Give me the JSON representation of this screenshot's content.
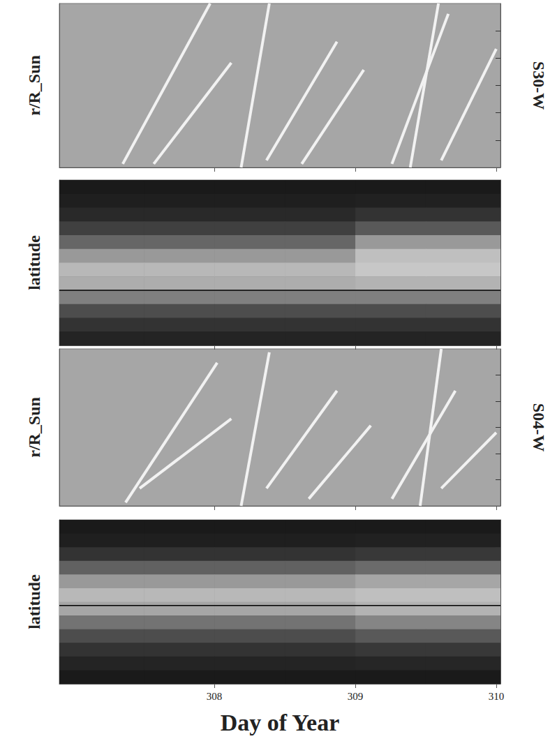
{
  "chart_data": [
    {
      "type": "line",
      "ylabel": "r/R_Sun",
      "annotation": "S30-W",
      "color": "#f2f2f2",
      "xlim": [
        306.9,
        310.03
      ],
      "xticks": [
        308,
        309,
        310
      ],
      "ylim": [
        0,
        6
      ],
      "yticks": [
        1,
        2,
        3,
        4,
        5
      ],
      "tick_labels": false,
      "series": [
        {
          "values": [
            [
              307.35,
              0.13
            ],
            [
              307.97,
              6.0
            ]
          ]
        },
        {
          "values": [
            [
              307.57,
              0.13
            ],
            [
              308.12,
              3.83
            ]
          ]
        },
        {
          "values": [
            [
              308.19,
              0
            ],
            [
              308.39,
              6.0
            ]
          ]
        },
        {
          "values": [
            [
              308.37,
              0.26
            ],
            [
              308.87,
              4.6
            ]
          ]
        },
        {
          "values": [
            [
              308.62,
              0.13
            ],
            [
              309.06,
              3.57
            ]
          ]
        },
        {
          "values": [
            [
              309.26,
              0.13
            ],
            [
              309.66,
              5.62
            ]
          ]
        },
        {
          "values": [
            [
              309.39,
              0
            ],
            [
              309.59,
              6.0
            ]
          ]
        },
        {
          "values": [
            [
              309.61,
              0.26
            ],
            [
              310.0,
              4.34
            ]
          ]
        }
      ]
    },
    {
      "type": "heatmap",
      "ylabel": "latitude",
      "xlim": [
        306.9,
        310.03
      ],
      "xticks": [
        308,
        309,
        310
      ],
      "ylim": [
        -90,
        90
      ],
      "yticks": [
        -60,
        -30,
        0,
        30,
        60
      ],
      "tick_labels": false,
      "hline": -30,
      "x_bins": [
        306.9,
        307.5,
        308,
        308.5,
        309,
        309.5,
        310.03
      ],
      "lat_bins": [
        90,
        75,
        60,
        45,
        30,
        15,
        0,
        -15,
        -30,
        -45,
        -60,
        -75,
        -90
      ],
      "cells": [
        [
          0.1,
          0.1,
          0.1,
          0.1,
          0.1,
          0.1
        ],
        [
          0.12,
          0.12,
          0.12,
          0.12,
          0.13,
          0.13
        ],
        [
          0.16,
          0.16,
          0.16,
          0.16,
          0.2,
          0.2
        ],
        [
          0.25,
          0.25,
          0.25,
          0.25,
          0.35,
          0.35
        ],
        [
          0.4,
          0.4,
          0.4,
          0.4,
          0.6,
          0.6
        ],
        [
          0.6,
          0.6,
          0.6,
          0.6,
          0.75,
          0.75
        ],
        [
          0.72,
          0.72,
          0.72,
          0.72,
          0.78,
          0.78
        ],
        [
          0.68,
          0.68,
          0.68,
          0.68,
          0.7,
          0.7
        ],
        [
          0.5,
          0.5,
          0.5,
          0.5,
          0.5,
          0.5
        ],
        [
          0.3,
          0.3,
          0.3,
          0.3,
          0.3,
          0.3
        ],
        [
          0.2,
          0.2,
          0.2,
          0.2,
          0.2,
          0.2
        ],
        [
          0.14,
          0.14,
          0.14,
          0.14,
          0.14,
          0.14
        ]
      ]
    },
    {
      "type": "line",
      "ylabel": "r/R_Sun",
      "annotation": "S04-W",
      "color": "#f2f2f2",
      "xlim": [
        306.9,
        310.03
      ],
      "xticks": [
        308,
        309,
        310
      ],
      "ylim": [
        0,
        6
      ],
      "yticks": [
        1,
        2,
        3,
        4,
        5
      ],
      "tick_labels": false,
      "series": [
        {
          "values": [
            [
              307.37,
              0.13
            ],
            [
              308.02,
              5.47
            ]
          ]
        },
        {
          "values": [
            [
              307.47,
              0.67
            ],
            [
              308.12,
              3.33
            ]
          ]
        },
        {
          "values": [
            [
              308.19,
              0
            ],
            [
              308.39,
              5.87
            ]
          ]
        },
        {
          "values": [
            [
              308.37,
              0.67
            ],
            [
              308.87,
              4.4
            ]
          ]
        },
        {
          "values": [
            [
              308.67,
              0.27
            ],
            [
              309.11,
              3.07
            ]
          ]
        },
        {
          "values": [
            [
              309.26,
              0.27
            ],
            [
              309.71,
              4.4
            ]
          ]
        },
        {
          "values": [
            [
              309.46,
              0
            ],
            [
              309.61,
              6.0
            ]
          ]
        },
        {
          "values": [
            [
              309.61,
              0.67
            ],
            [
              310.0,
              2.8
            ]
          ]
        }
      ]
    },
    {
      "type": "heatmap",
      "ylabel": "latitude",
      "xlabel": "Day of Year",
      "xlim": [
        306.9,
        310.03
      ],
      "xticks": [
        308,
        309,
        310
      ],
      "ylim": [
        -90,
        90
      ],
      "yticks": [
        -60,
        -30,
        0,
        30,
        60
      ],
      "tick_labels": "x",
      "hline": -4,
      "x_bins": [
        306.9,
        307.5,
        308,
        308.5,
        309,
        309.5,
        310.03
      ],
      "lat_bins": [
        90,
        75,
        60,
        45,
        30,
        15,
        0,
        -15,
        -30,
        -45,
        -60,
        -75,
        -90
      ],
      "cells": [
        [
          0.1,
          0.1,
          0.1,
          0.1,
          0.1,
          0.1
        ],
        [
          0.12,
          0.12,
          0.12,
          0.12,
          0.13,
          0.13
        ],
        [
          0.2,
          0.2,
          0.2,
          0.2,
          0.22,
          0.22
        ],
        [
          0.38,
          0.38,
          0.38,
          0.38,
          0.42,
          0.42
        ],
        [
          0.6,
          0.6,
          0.6,
          0.6,
          0.65,
          0.65
        ],
        [
          0.72,
          0.72,
          0.72,
          0.72,
          0.75,
          0.75
        ],
        [
          0.65,
          0.65,
          0.65,
          0.65,
          0.7,
          0.7
        ],
        [
          0.45,
          0.45,
          0.45,
          0.45,
          0.52,
          0.52
        ],
        [
          0.3,
          0.3,
          0.3,
          0.3,
          0.35,
          0.35
        ],
        [
          0.2,
          0.2,
          0.2,
          0.2,
          0.22,
          0.22
        ],
        [
          0.14,
          0.14,
          0.14,
          0.14,
          0.15,
          0.15
        ],
        [
          0.1,
          0.1,
          0.1,
          0.1,
          0.1,
          0.1
        ]
      ]
    }
  ]
}
